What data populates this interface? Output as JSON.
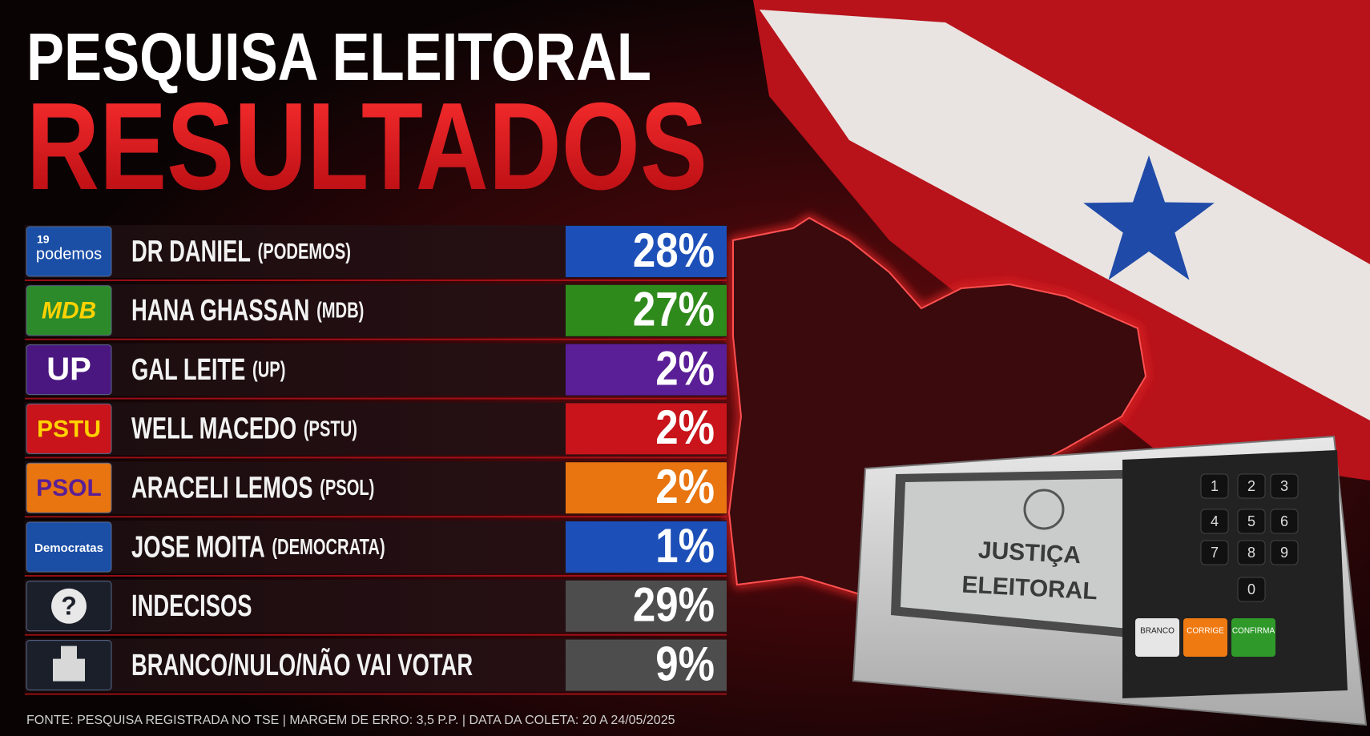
{
  "header": {
    "title": "PESQUISA ELEITORAL",
    "subtitle": "RESULTADOS"
  },
  "rows": [
    {
      "logo": [
        "19",
        "podemos"
      ],
      "name": "DR DANIEL",
      "party": "(PODEMOS)",
      "result": "28%"
    },
    {
      "logo": [
        "MDB"
      ],
      "name": "HANA GHASSAN",
      "party": "(MDB)",
      "result": "27%"
    },
    {
      "logo": [
        "UP"
      ],
      "name": "GAL LEITE",
      "party": "(UP)",
      "result": "2%"
    },
    {
      "logo": [
        "PSTU"
      ],
      "name": "WELL MACEDO",
      "party": "(PSTU)",
      "result": "2%"
    },
    {
      "logo": [
        "PSOL"
      ],
      "name": "ARACELI LEMOS",
      "party": "(PSOL)",
      "result": "2%"
    },
    {
      "logo": [
        "Democratas"
      ],
      "name": "JOSE MOITA",
      "party": "(DEMOCRATA)",
      "result": "1%"
    },
    {
      "logo": [
        "?"
      ],
      "name": "INDECISOS",
      "result": "29%"
    },
    {
      "logo": [],
      "name": "BRANCO/NULO/NÃO VAI VOTAR",
      "result": "9%"
    }
  ],
  "footer": "FONTE: PESQUISA REGISTRADA NO TSE  |  MARGEM DE ERRO: 3,5 P.P.  |  DATA DA COLETA: 20 A 24/05/2025",
  "machine": {
    "screen": [
      "JUSTIÇA",
      "ELEITORAL"
    ],
    "keys": [
      "1",
      "2",
      "3",
      "4",
      "5",
      "6",
      "7",
      "8",
      "9",
      "0"
    ],
    "buttons": [
      "BRANCO",
      "CORRIGE",
      "CONFIRMA"
    ]
  }
}
